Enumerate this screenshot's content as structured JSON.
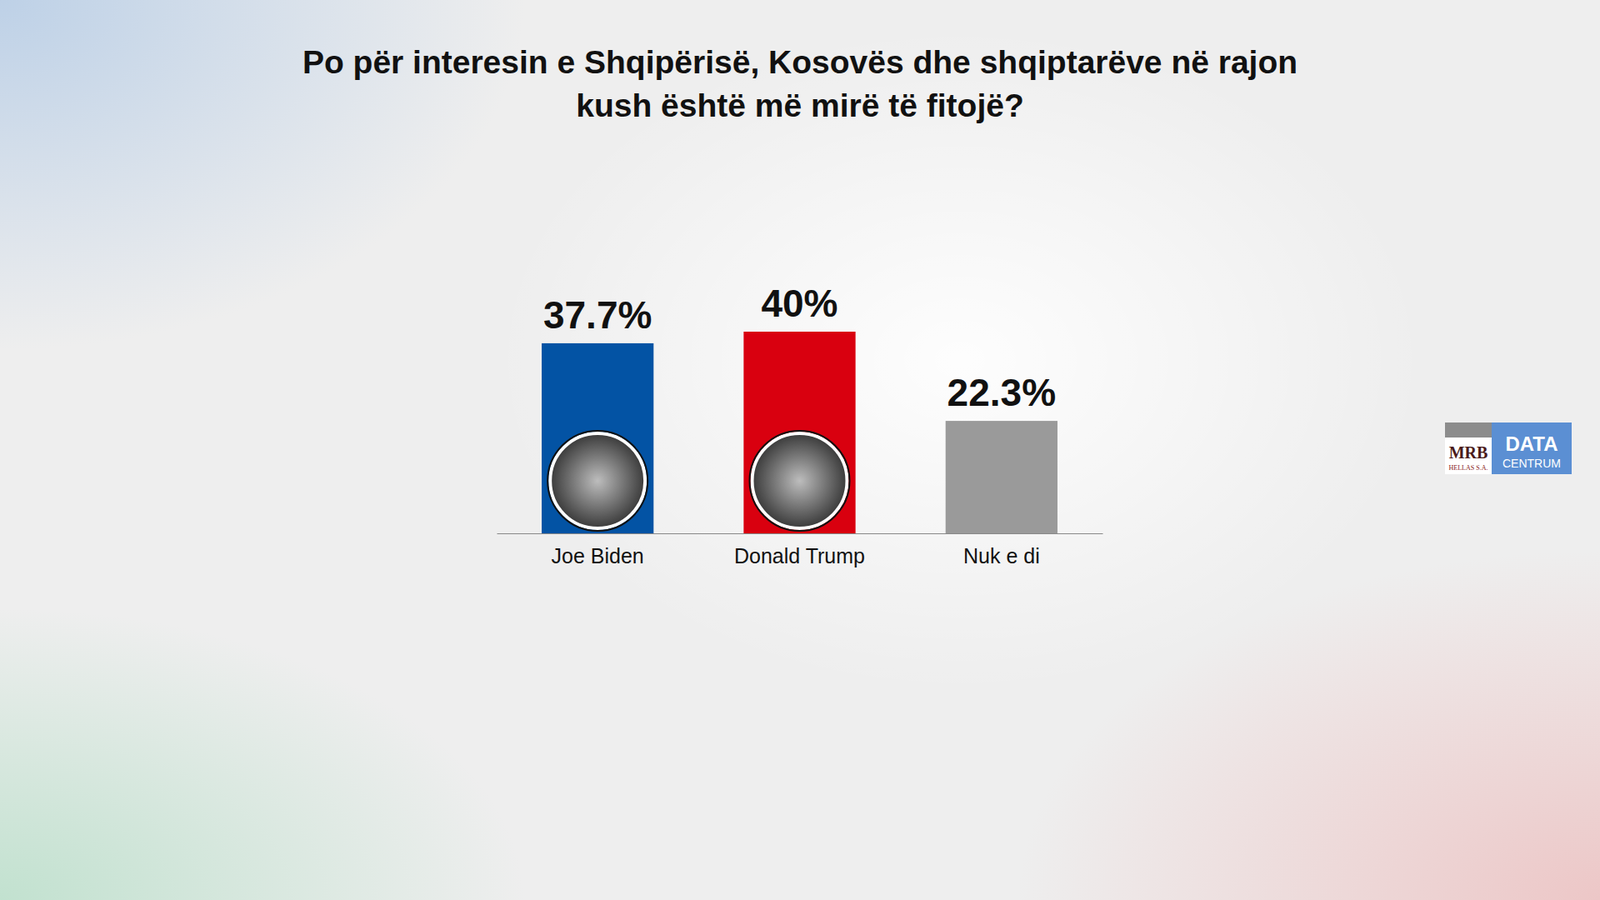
{
  "chart_data": {
    "type": "bar",
    "title": "Po për interesin e Shqipërisë, Kosovës dhe shqiptarëve në rajon kush është më mirë të fitojë?",
    "categories": [
      "Joe Biden",
      "Donald Trump",
      "Nuk e di"
    ],
    "values": [
      37.7,
      40,
      22.3
    ],
    "value_labels": [
      "37.7%",
      "40%",
      "22.3%"
    ],
    "colors": [
      "#0353a4",
      "#d9000f",
      "#9a9a9a"
    ],
    "ylim": [
      0,
      40
    ],
    "data_labels": true,
    "tick_labels": "x",
    "grid": false,
    "annotations": [
      "MRB",
      "HELLAS S.A.",
      "DATA",
      "CENTRUM"
    ]
  }
}
